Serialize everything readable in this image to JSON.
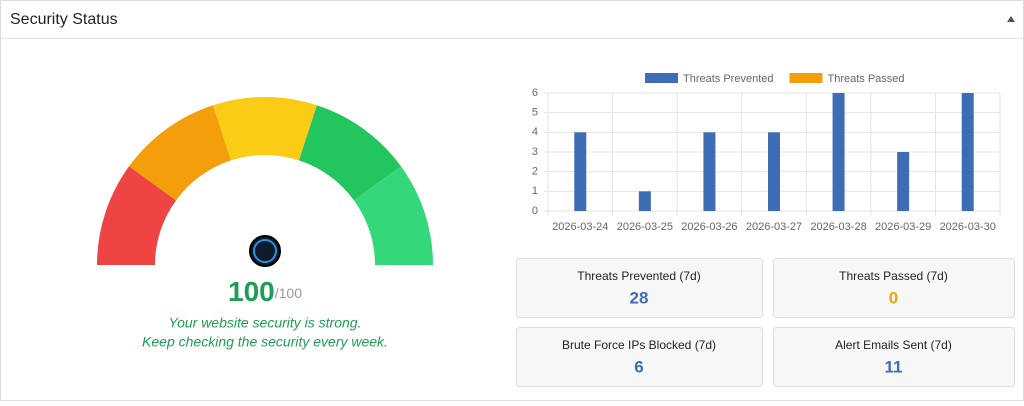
{
  "header": {
    "title": "Security Status"
  },
  "gauge": {
    "score": 100,
    "max": {
      "value": 100,
      "label": "/100"
    },
    "score_color": "#1f9d55",
    "segment_colors": [
      "#ef4444",
      "#f59e0b",
      "#facc15",
      "#22c55e",
      "#34d87a"
    ],
    "messages": [
      "Your website security is strong.",
      "Keep checking the security every week."
    ]
  },
  "chart_data": {
    "type": "bar",
    "categories": [
      "2026-03-24",
      "2026-03-25",
      "2026-03-26",
      "2026-03-27",
      "2026-03-28",
      "2026-03-29",
      "2026-03-30"
    ],
    "series": [
      {
        "name": "Threats Prevented",
        "color": "#3d6db5",
        "values": [
          4,
          1,
          4,
          4,
          6,
          3,
          6
        ]
      },
      {
        "name": "Threats Passed",
        "color": "#f59e0b",
        "values": [
          0,
          0,
          0,
          0,
          0,
          0,
          0
        ]
      }
    ],
    "ylim": [
      0,
      6
    ],
    "yticks": [
      0,
      1,
      2,
      3,
      4,
      5,
      6
    ],
    "grid": true,
    "legend": "top"
  },
  "stats": [
    {
      "label": "Threats Prevented (7d)",
      "value": 28,
      "color": "#3d6db5"
    },
    {
      "label": "Threats Passed (7d)",
      "value": 0,
      "color": "#f0a500"
    },
    {
      "label": "Brute Force IPs Blocked (7d)",
      "value": 6,
      "color": "#3d6db5"
    },
    {
      "label": "Alert Emails Sent (7d)",
      "value": 11,
      "color": "#3d6db5"
    }
  ]
}
